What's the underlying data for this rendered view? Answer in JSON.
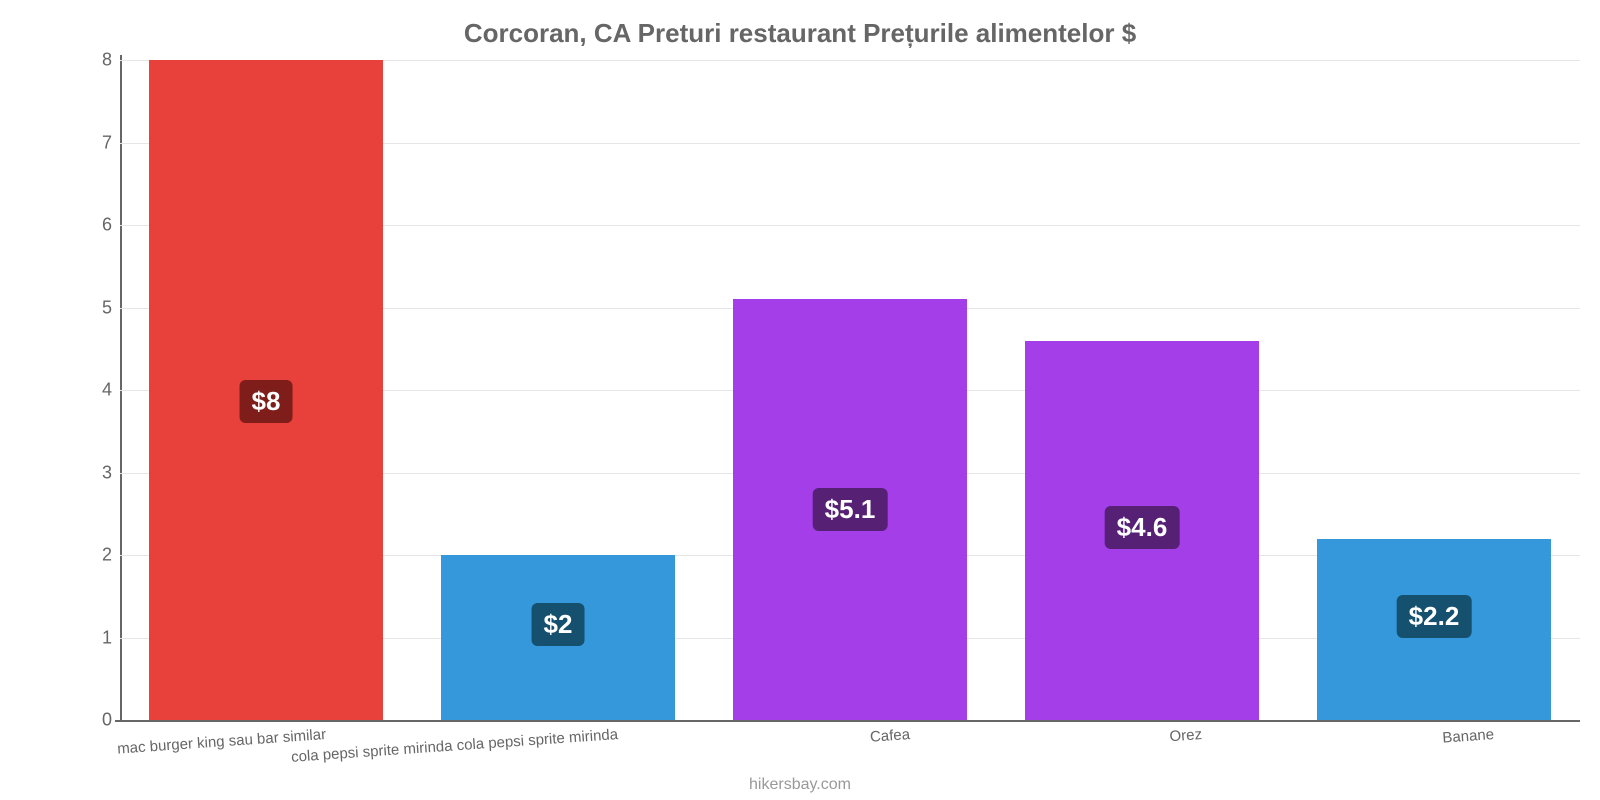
{
  "chart": {
    "type": "bar",
    "title": "Corcoran, CA Preturi restaurant Prețurile alimentelor $",
    "title_fontsize": 26,
    "title_color": "#666666",
    "footer": "hikersbay.com",
    "footer_color": "#999999",
    "background_color": "#ffffff",
    "grid_color": "#e6e6e6",
    "axis_color": "#666666",
    "ylim": [
      0,
      8
    ],
    "ytick_step": 1,
    "yticks": [
      "0",
      "1",
      "2",
      "3",
      "4",
      "5",
      "6",
      "7",
      "8"
    ],
    "tick_fontsize": 18,
    "label_fontsize": 15,
    "label_color": "#666666",
    "label_rotation_deg": -4,
    "bar_width_pct": 80,
    "badge_fontsize": 26,
    "categories": [
      "mac burger king sau bar similar",
      "cola pepsi sprite mirinda cola pepsi sprite mirinda",
      "Cafea",
      "Orez",
      "Banane"
    ],
    "values": [
      8,
      2,
      5.1,
      4.6,
      2.2
    ],
    "value_labels": [
      "$8",
      "$2",
      "$5.1",
      "$4.6",
      "$2.2"
    ],
    "bar_colors": [
      "#e8403a",
      "#3498db",
      "#a43ee8",
      "#a43ee8",
      "#3498db"
    ],
    "badge_colors": [
      "#7e1d1a",
      "#16506f",
      "#562075",
      "#562075",
      "#16506f"
    ]
  }
}
